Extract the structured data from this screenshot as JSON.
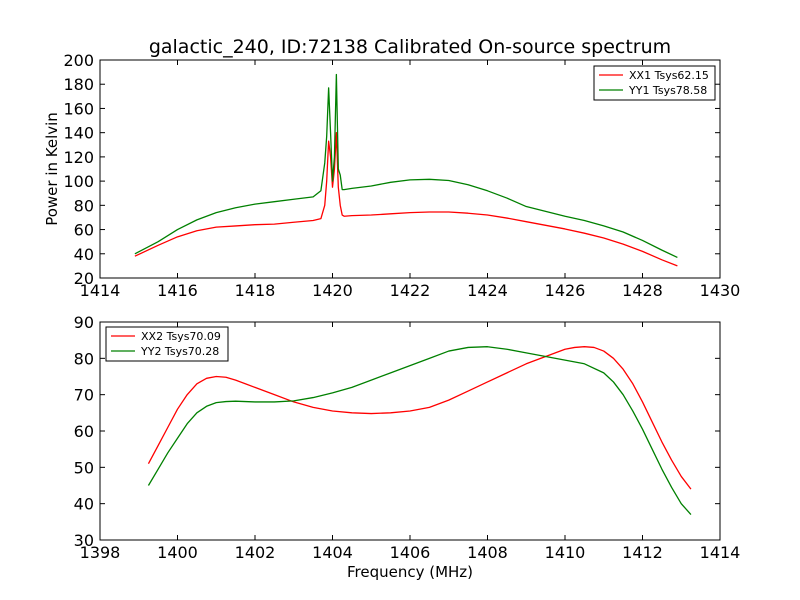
{
  "figure_title": "galactic_240, ID:72138 Calibrated On-source spectrum",
  "colors": {
    "red": "#ff0000",
    "green": "#008000"
  },
  "chart_data": [
    {
      "type": "line",
      "title": "galactic_240, ID:72138 Calibrated On-source spectrum",
      "xlabel": "",
      "ylabel": "Power in Kelvin",
      "xlim": [
        1414,
        1430
      ],
      "ylim": [
        20,
        200
      ],
      "xticks": [
        1414,
        1416,
        1418,
        1420,
        1422,
        1424,
        1426,
        1428,
        1430
      ],
      "yticks": [
        20,
        40,
        60,
        80,
        100,
        120,
        140,
        160,
        180,
        200
      ],
      "legend_position": "upper-right",
      "series": [
        {
          "name": "XX1 Tsys62.15",
          "color": "#ff0000",
          "x": [
            1414.9,
            1415.5,
            1416.0,
            1416.5,
            1417.0,
            1417.5,
            1418.0,
            1418.5,
            1419.0,
            1419.5,
            1419.7,
            1419.8,
            1419.85,
            1419.9,
            1419.95,
            1420.0,
            1420.05,
            1420.1,
            1420.15,
            1420.2,
            1420.25,
            1420.3,
            1420.5,
            1421.0,
            1421.5,
            1422.0,
            1422.5,
            1423.0,
            1423.5,
            1424.0,
            1424.5,
            1425.0,
            1425.5,
            1426.0,
            1426.5,
            1427.0,
            1427.5,
            1428.0,
            1428.5,
            1428.9
          ],
          "y": [
            38,
            47,
            54,
            59,
            62,
            63,
            64,
            64.5,
            66,
            67.5,
            69,
            80,
            100,
            133,
            120,
            95,
            110,
            140,
            95,
            80,
            72,
            71,
            71.5,
            72,
            73,
            74,
            74.5,
            74.5,
            73.5,
            72,
            69.5,
            66.5,
            63.5,
            60.5,
            57,
            53,
            48,
            42,
            35,
            30
          ]
        },
        {
          "name": "YY1 Tsys78.58",
          "color": "#008000",
          "x": [
            1414.9,
            1415.5,
            1416.0,
            1416.5,
            1417.0,
            1417.5,
            1418.0,
            1418.5,
            1419.0,
            1419.5,
            1419.7,
            1419.8,
            1419.85,
            1419.9,
            1419.95,
            1420.0,
            1420.05,
            1420.1,
            1420.15,
            1420.2,
            1420.25,
            1420.3,
            1420.5,
            1421.0,
            1421.5,
            1422.0,
            1422.5,
            1423.0,
            1423.5,
            1424.0,
            1424.5,
            1425.0,
            1425.5,
            1426.0,
            1426.5,
            1427.0,
            1427.5,
            1428.0,
            1428.5,
            1428.9
          ],
          "y": [
            40,
            50,
            60,
            68,
            74,
            78,
            81,
            83,
            85,
            87,
            92,
            115,
            137,
            177,
            140,
            100,
            120,
            188,
            110,
            105,
            93,
            93,
            94,
            96,
            99,
            101,
            101.5,
            100.5,
            97,
            92,
            86,
            79,
            75,
            71,
            67.5,
            63,
            58,
            51,
            43,
            37
          ]
        }
      ]
    },
    {
      "type": "line",
      "title": "",
      "xlabel": "Frequency (MHz)",
      "ylabel": "",
      "xlim": [
        1398,
        1414
      ],
      "ylim": [
        30,
        90
      ],
      "xticks": [
        1398,
        1400,
        1402,
        1404,
        1406,
        1408,
        1410,
        1412,
        1414
      ],
      "yticks": [
        30,
        40,
        50,
        60,
        70,
        80,
        90
      ],
      "legend_position": "upper-left",
      "series": [
        {
          "name": "XX2 Tsys70.09",
          "color": "#ff0000",
          "x": [
            1399.25,
            1399.5,
            1399.75,
            1400.0,
            1400.25,
            1400.5,
            1400.75,
            1401.0,
            1401.25,
            1401.5,
            1401.75,
            1402.0,
            1402.5,
            1403.0,
            1403.5,
            1404.0,
            1404.5,
            1405.0,
            1405.5,
            1406.0,
            1406.5,
            1407.0,
            1407.5,
            1408.0,
            1408.5,
            1409.0,
            1409.5,
            1410.0,
            1410.25,
            1410.5,
            1410.75,
            1411.0,
            1411.25,
            1411.5,
            1411.75,
            1412.0,
            1412.25,
            1412.5,
            1412.75,
            1413.0,
            1413.25
          ],
          "y": [
            51,
            56,
            61,
            66,
            70,
            73,
            74.5,
            75,
            74.8,
            74,
            73,
            72,
            70,
            68,
            66.5,
            65.5,
            65,
            64.8,
            65,
            65.5,
            66.5,
            68.5,
            71,
            73.5,
            76,
            78.5,
            80.5,
            82.5,
            83,
            83.2,
            83,
            82,
            80,
            77,
            73,
            68,
            62.5,
            57,
            52,
            47.5,
            44
          ]
        },
        {
          "name": "YY2 Tsys70.28",
          "color": "#008000",
          "x": [
            1399.25,
            1399.5,
            1399.75,
            1400.0,
            1400.25,
            1400.5,
            1400.75,
            1401.0,
            1401.25,
            1401.5,
            1401.75,
            1402.0,
            1402.5,
            1403.0,
            1403.5,
            1404.0,
            1404.5,
            1405.0,
            1405.5,
            1406.0,
            1406.5,
            1407.0,
            1407.5,
            1408.0,
            1408.5,
            1409.0,
            1409.5,
            1410.0,
            1410.5,
            1411.0,
            1411.25,
            1411.5,
            1411.75,
            1412.0,
            1412.25,
            1412.5,
            1412.75,
            1413.0,
            1413.25
          ],
          "y": [
            45,
            49.5,
            54,
            58,
            62,
            65,
            66.8,
            67.8,
            68.1,
            68.2,
            68.1,
            68,
            68,
            68.3,
            69.2,
            70.5,
            72,
            74,
            76,
            78,
            80,
            82,
            83,
            83.2,
            82.5,
            81.5,
            80.5,
            79.5,
            78.5,
            76,
            73.5,
            70,
            65.5,
            60.5,
            55,
            49.5,
            44.5,
            40,
            37
          ]
        }
      ]
    }
  ]
}
